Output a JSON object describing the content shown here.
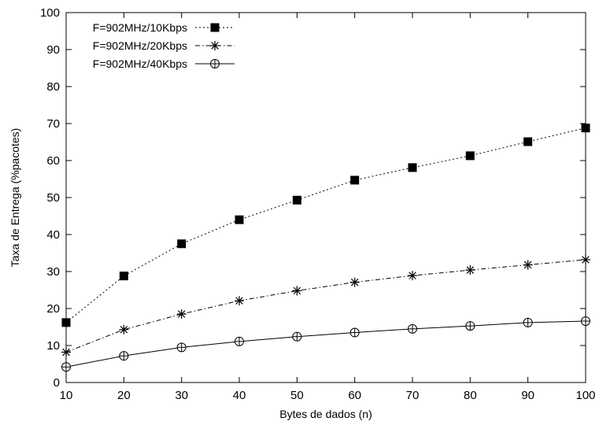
{
  "chart_data": {
    "type": "line",
    "title": "",
    "xlabel": "Bytes de dados (n)",
    "ylabel": "Taxa de Entrega (%pacotes)",
    "xlim": [
      10,
      100
    ],
    "ylim": [
      0,
      100
    ],
    "x_ticks": [
      10,
      20,
      30,
      40,
      50,
      60,
      70,
      80,
      90,
      100
    ],
    "y_ticks": [
      0,
      10,
      20,
      30,
      40,
      50,
      60,
      70,
      80,
      90,
      100
    ],
    "grid": false,
    "legend_position": "top-left",
    "x": [
      10,
      20,
      30,
      40,
      50,
      60,
      70,
      80,
      90,
      100
    ],
    "series": [
      {
        "name": "F=902MHz/10Kbps",
        "marker": "filled-square",
        "line_style": "dotted",
        "values": [
          16.2,
          28.8,
          37.5,
          44.0,
          49.3,
          54.7,
          58.1,
          61.3,
          65.1,
          68.8
        ]
      },
      {
        "name": "F=902MHz/20Kbps",
        "marker": "asterisk",
        "line_style": "dash-dot",
        "values": [
          8.2,
          14.3,
          18.5,
          22.1,
          24.8,
          27.1,
          28.9,
          30.4,
          31.8,
          33.2
        ]
      },
      {
        "name": "F=902MHz/40Kbps",
        "marker": "circle-plus",
        "line_style": "solid",
        "values": [
          4.2,
          7.2,
          9.5,
          11.1,
          12.4,
          13.5,
          14.5,
          15.3,
          16.2,
          16.6
        ]
      }
    ],
    "colors": {
      "line": "#000000",
      "background": "#ffffff"
    }
  }
}
